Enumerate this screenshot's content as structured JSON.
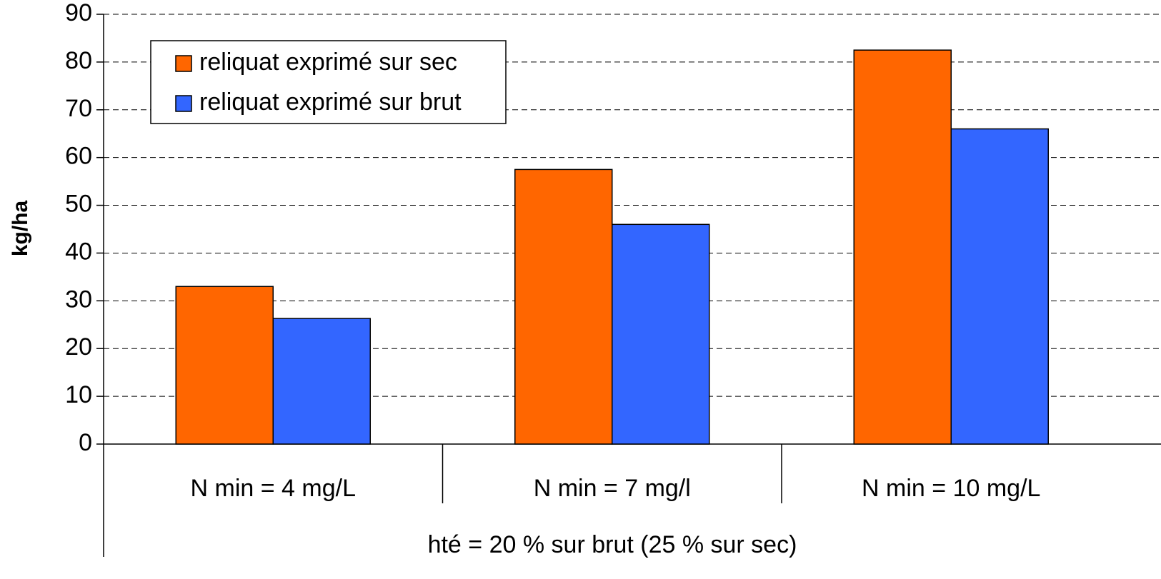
{
  "chart_data": {
    "type": "bar",
    "x_label": "hté = 20 % sur brut (25 % sur sec)",
    "y_label": "kg/ha",
    "categories": [
      "N min = 4 mg/L",
      "N min = 7 mg/l",
      "N min = 10 mg/L"
    ],
    "series": [
      {
        "name": "reliquat exprimé sur sec",
        "color": "#ff6600",
        "values": [
          33,
          57.5,
          82.5
        ]
      },
      {
        "name": "reliquat exprimé sur brut",
        "color": "#3366ff",
        "values": [
          26.3,
          46,
          66
        ]
      }
    ],
    "ylim": [
      0,
      90
    ],
    "yticks": [
      0,
      10,
      20,
      30,
      40,
      50,
      60,
      70,
      80,
      90
    ],
    "grid": true,
    "legend": "top-left"
  }
}
